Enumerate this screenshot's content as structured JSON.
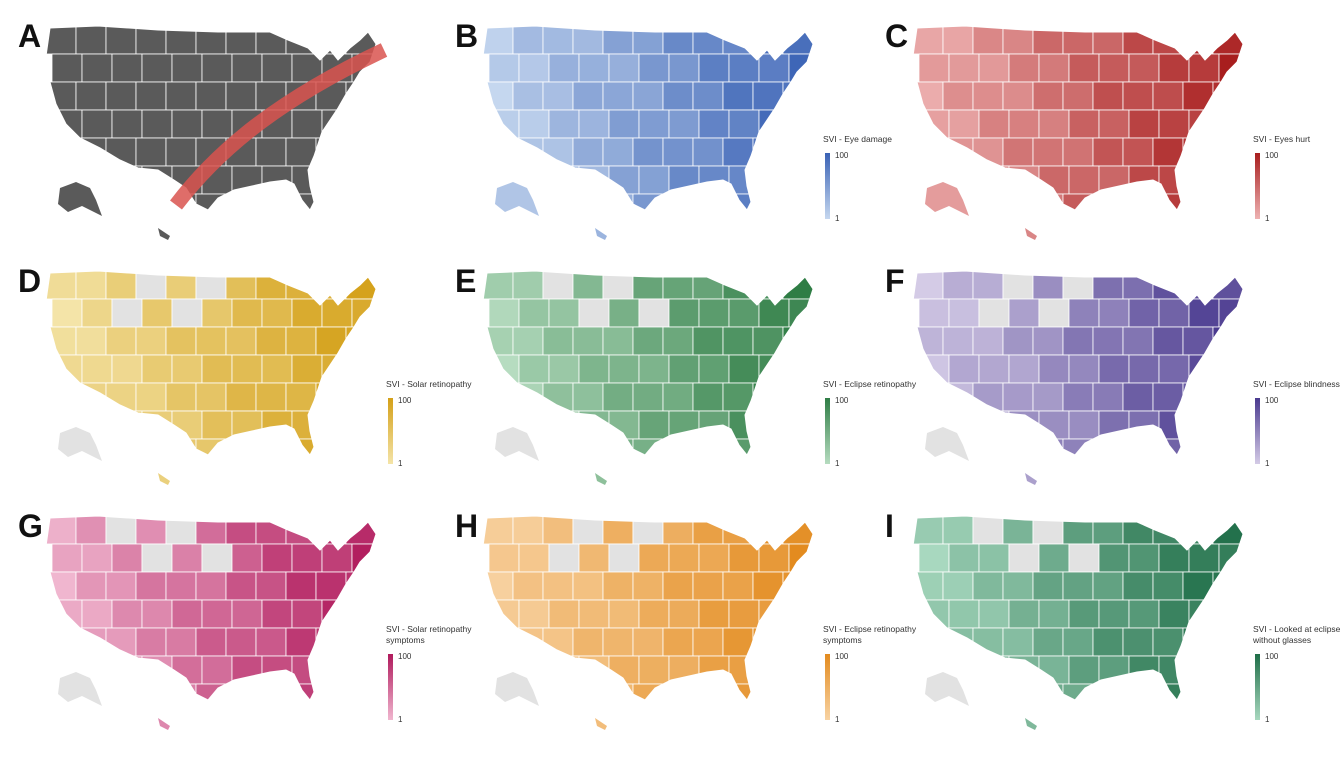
{
  "panels": [
    {
      "letter": "A",
      "legend": null,
      "color_low": "#555555",
      "color_high": "#555555",
      "path_band": true,
      "base": "#5a5a5a"
    },
    {
      "letter": "B",
      "legend": {
        "title": "SVI - Eye damage",
        "max": "100",
        "min": "1"
      },
      "color_low": "#c5d7ef",
      "color_high": "#3a62b5"
    },
    {
      "letter": "C",
      "legend": {
        "title": "SVI - Eyes hurt",
        "max": "100",
        "min": "1"
      },
      "color_low": "#eeb2b2",
      "color_high": "#a81e1e"
    },
    {
      "letter": "D",
      "legend": {
        "title": "SVI - Solar retinopathy",
        "max": "100",
        "min": "1"
      },
      "color_low": "#f4e4a8",
      "color_high": "#d4a018"
    },
    {
      "letter": "E",
      "legend": {
        "title": "SVI - Eclipse retinopathy",
        "max": "100",
        "min": "1"
      },
      "color_low": "#b6dcc0",
      "color_high": "#2f7d45"
    },
    {
      "letter": "F",
      "legend": {
        "title": "SVI - Eclipse blindness",
        "max": "100",
        "min": "1"
      },
      "color_low": "#d4cbe6",
      "color_high": "#4a3a8f"
    },
    {
      "letter": "G",
      "legend": {
        "title": "SVI - Solar retinopathy symptoms",
        "max": "100",
        "min": "1"
      },
      "color_low": "#f0b6cf",
      "color_high": "#b01a5c"
    },
    {
      "letter": "H",
      "legend": {
        "title": "SVI - Eclipse retinopathy symptoms",
        "max": "100",
        "min": "1"
      },
      "color_low": "#f8d3a3",
      "color_high": "#e38b1f"
    },
    {
      "letter": "I",
      "legend": {
        "title": "SVI - Looked at eclipse without glasses",
        "max": "100",
        "min": "1"
      },
      "color_low": "#a8d8bf",
      "color_high": "#1f6e48"
    }
  ],
  "colors": {
    "no_data": "#e2e2e2",
    "border": "#ffffff",
    "eclipse_path": "#d9534f"
  }
}
